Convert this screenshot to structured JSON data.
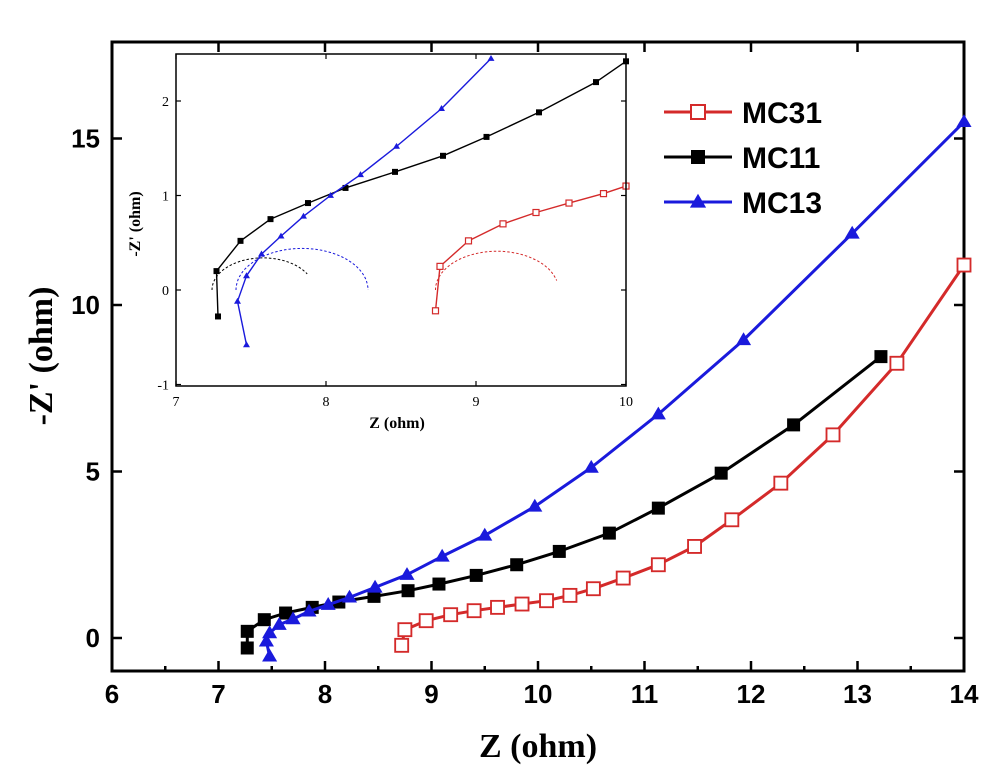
{
  "chart_data": [
    {
      "type": "line",
      "xlabel": "Z (ohm)",
      "ylabel": "-Z' (ohm)",
      "xlim": [
        6,
        14
      ],
      "ylim": [
        -1,
        18
      ],
      "xticks": [
        6,
        7,
        8,
        9,
        10,
        11,
        12,
        13,
        14
      ],
      "yticks": [
        0,
        5,
        10,
        15
      ],
      "legend": {
        "placement": "top-right"
      },
      "series": [
        {
          "name": "MC31",
          "color": "#d42a2a",
          "marker": "open-square",
          "points": [
            [
              8.72,
              -0.22
            ],
            [
              8.75,
              0.25
            ],
            [
              8.95,
              0.52
            ],
            [
              9.18,
              0.7
            ],
            [
              9.4,
              0.82
            ],
            [
              9.62,
              0.92
            ],
            [
              9.85,
              1.02
            ],
            [
              10.08,
              1.12
            ],
            [
              10.3,
              1.28
            ],
            [
              10.52,
              1.48
            ],
            [
              10.8,
              1.8
            ],
            [
              11.13,
              2.2
            ],
            [
              11.47,
              2.75
            ],
            [
              11.82,
              3.55
            ],
            [
              12.28,
              4.65
            ],
            [
              12.77,
              6.1
            ],
            [
              13.37,
              8.25
            ],
            [
              14.0,
              11.2
            ]
          ]
        },
        {
          "name": "MC11",
          "color": "#000000",
          "marker": "filled-square",
          "points": [
            [
              7.27,
              -0.3
            ],
            [
              7.27,
              0.2
            ],
            [
              7.43,
              0.55
            ],
            [
              7.63,
              0.75
            ],
            [
              7.88,
              0.92
            ],
            [
              8.13,
              1.08
            ],
            [
              8.46,
              1.25
            ],
            [
              8.78,
              1.42
            ],
            [
              9.07,
              1.62
            ],
            [
              9.42,
              1.88
            ],
            [
              9.8,
              2.2
            ],
            [
              10.2,
              2.6
            ],
            [
              10.67,
              3.15
            ],
            [
              11.13,
              3.9
            ],
            [
              11.72,
              4.95
            ],
            [
              12.4,
              6.4
            ],
            [
              13.22,
              8.45
            ]
          ]
        },
        {
          "name": "MC13",
          "color": "#1a1adc",
          "marker": "filled-triangle",
          "points": [
            [
              7.48,
              -0.55
            ],
            [
              7.45,
              -0.1
            ],
            [
              7.48,
              0.15
            ],
            [
              7.57,
              0.4
            ],
            [
              7.7,
              0.57
            ],
            [
              7.85,
              0.8
            ],
            [
              8.03,
              1.0
            ],
            [
              8.23,
              1.22
            ],
            [
              8.47,
              1.52
            ],
            [
              8.77,
              1.9
            ],
            [
              9.1,
              2.45
            ],
            [
              9.5,
              3.08
            ],
            [
              9.97,
              3.95
            ],
            [
              10.5,
              5.12
            ],
            [
              11.13,
              6.72
            ],
            [
              11.93,
              8.95
            ],
            [
              12.95,
              12.15
            ],
            [
              14.0,
              15.5
            ]
          ]
        }
      ]
    },
    {
      "type": "line",
      "role": "inset",
      "xlabel": "Z (ohm)",
      "ylabel": "-Z' (ohm)",
      "xlim": [
        7,
        10
      ],
      "ylim": [
        -1,
        2.5
      ],
      "xticks": [
        7,
        8,
        9,
        10
      ],
      "yticks": [
        -1,
        0,
        1,
        2
      ],
      "series": [
        {
          "name": "MC31",
          "color": "#d42a2a",
          "marker": "open-square",
          "points": [
            [
              8.73,
              -0.22
            ],
            [
              8.76,
              0.25
            ],
            [
              8.95,
              0.52
            ],
            [
              9.18,
              0.7
            ],
            [
              9.4,
              0.82
            ],
            [
              9.62,
              0.92
            ],
            [
              9.85,
              1.02
            ],
            [
              10.0,
              1.1
            ]
          ]
        },
        {
          "name": "MC11",
          "color": "#000000",
          "marker": "filled-square",
          "points": [
            [
              7.28,
              -0.28
            ],
            [
              7.27,
              0.2
            ],
            [
              7.43,
              0.52
            ],
            [
              7.63,
              0.75
            ],
            [
              7.88,
              0.92
            ],
            [
              8.13,
              1.08
            ],
            [
              8.46,
              1.25
            ],
            [
              8.78,
              1.42
            ],
            [
              9.07,
              1.62
            ],
            [
              9.42,
              1.88
            ],
            [
              9.8,
              2.2
            ],
            [
              10.0,
              2.42
            ]
          ]
        },
        {
          "name": "MC13",
          "color": "#1a1adc",
          "marker": "filled-triangle",
          "points": [
            [
              7.47,
              -0.58
            ],
            [
              7.41,
              -0.12
            ],
            [
              7.47,
              0.15
            ],
            [
              7.57,
              0.38
            ],
            [
              7.7,
              0.57
            ],
            [
              7.85,
              0.78
            ],
            [
              8.03,
              1.0
            ],
            [
              8.23,
              1.22
            ],
            [
              8.47,
              1.52
            ],
            [
              8.77,
              1.92
            ],
            [
              9.1,
              2.45
            ]
          ]
        }
      ],
      "fit_arcs": [
        {
          "series": "MC11",
          "color": "#000000",
          "center": [
            7.58,
            0.0
          ],
          "radius": 0.34,
          "from_deg": 180,
          "to_deg": 30
        },
        {
          "series": "MC13",
          "color": "#1a1adc",
          "center": [
            7.84,
            0.0
          ],
          "radius": 0.44,
          "from_deg": 180,
          "to_deg": 0
        },
        {
          "series": "MC31",
          "color": "#d42a2a",
          "center": [
            9.14,
            0.0
          ],
          "radius": 0.41,
          "from_deg": 180,
          "to_deg": 14
        }
      ]
    }
  ]
}
